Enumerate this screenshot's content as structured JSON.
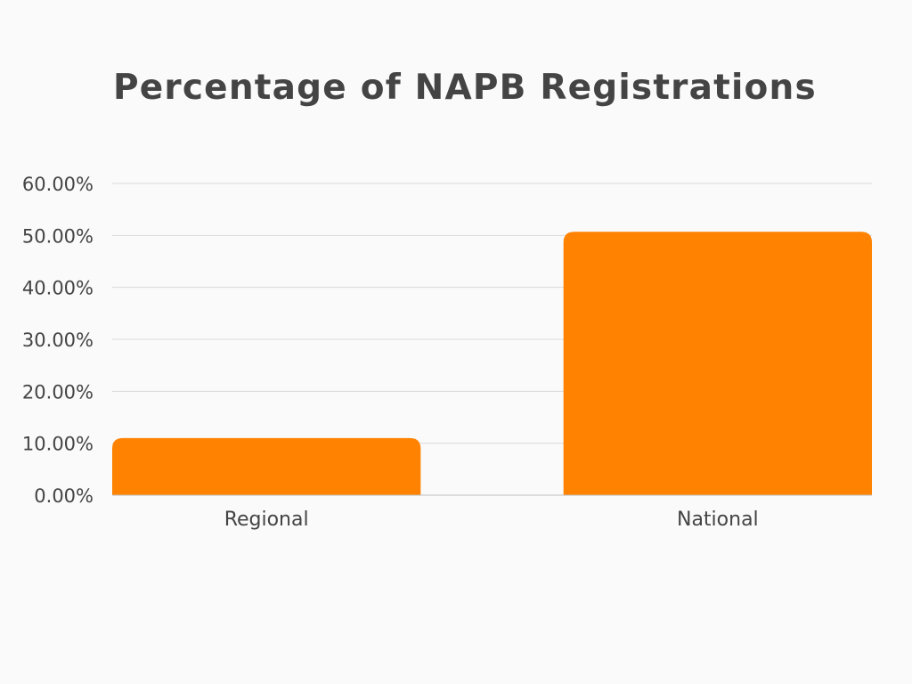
{
  "chart_data": {
    "type": "bar",
    "title": "Percentage of NAPB Registrations",
    "xlabel": "",
    "ylabel": "",
    "categories": [
      "Regional",
      "National"
    ],
    "values": [
      11.0,
      50.7
    ],
    "ylim": [
      0,
      60
    ],
    "yticks": [
      0,
      10,
      20,
      30,
      40,
      50,
      60
    ],
    "ytick_labels": [
      "0.00%",
      "10.00%",
      "20.00%",
      "30.00%",
      "40.00%",
      "50.00%",
      "60.00%"
    ],
    "grid": true,
    "legend": "none",
    "colors": {
      "bar": "#ff8200",
      "grid": "#d9d9d9",
      "axis": "#bdbdbd",
      "text": "#444444",
      "background": "#fafafa"
    }
  }
}
